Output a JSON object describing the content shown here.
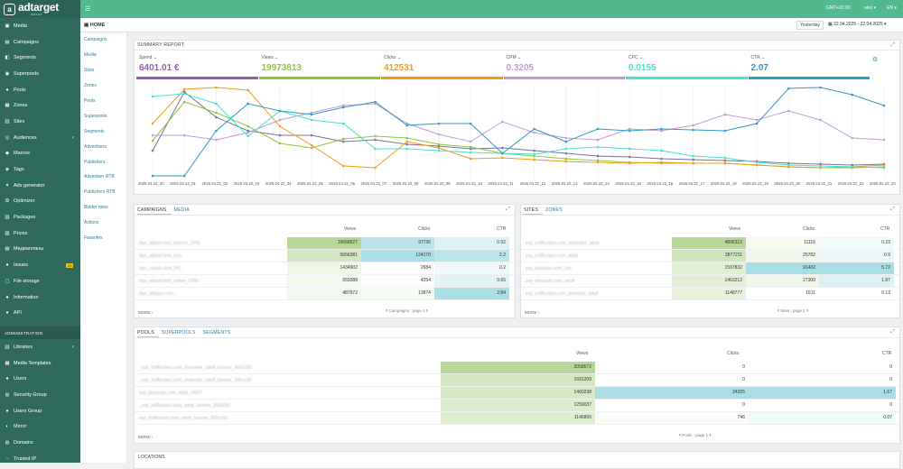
{
  "app": {
    "logo": "adtarget",
    "logo_sub": "SMART",
    "timezone": "GMT+03:00",
    "user": "alex",
    "lang": "EN"
  },
  "sidebar": {
    "items": [
      {
        "label": "Media",
        "icon": "image-icon"
      },
      {
        "label": "Campaigns",
        "icon": "briefcase-icon"
      },
      {
        "label": "Segments",
        "icon": "segments-icon"
      },
      {
        "label": "Superpools",
        "icon": "superpools-icon"
      },
      {
        "label": "Pools",
        "icon": "pools-icon"
      },
      {
        "label": "Zones",
        "icon": "zones-icon"
      },
      {
        "label": "Sites",
        "icon": "sites-icon"
      },
      {
        "label": "Audiences",
        "icon": "audiences-icon",
        "arrow": true
      },
      {
        "label": "Macros",
        "icon": "macros-icon"
      },
      {
        "label": "Tags",
        "icon": "tag-icon"
      },
      {
        "label": "Ads generator",
        "icon": "generator-icon"
      },
      {
        "label": "Optimizer",
        "icon": "gear-icon"
      },
      {
        "label": "Packages",
        "icon": "package-icon"
      },
      {
        "label": "Prices",
        "icon": "prices-icon"
      },
      {
        "label": "Медиапланы",
        "icon": "mediaplan-icon"
      },
      {
        "label": "Issues",
        "icon": "alert-icon",
        "badge": "20"
      },
      {
        "label": "File storage",
        "icon": "file-icon"
      },
      {
        "label": "Information",
        "icon": "info-icon"
      },
      {
        "label": "API",
        "icon": "api-icon"
      }
    ],
    "admin_title": "ADMINISTRATION",
    "admin_items": [
      {
        "label": "Libraries",
        "icon": "library-icon",
        "arrow": true
      },
      {
        "label": "Media Templates",
        "icon": "template-icon"
      },
      {
        "label": "Users",
        "icon": "user-icon"
      },
      {
        "label": "Security Group",
        "icon": "security-icon"
      },
      {
        "label": "Users Group",
        "icon": "users-group-icon"
      },
      {
        "label": "Mirror",
        "icon": "mirror-icon"
      },
      {
        "label": "Domains",
        "icon": "domain-icon"
      },
      {
        "label": "Trusted IP",
        "icon": "trusted-icon"
      }
    ]
  },
  "header": {
    "home": "HOME",
    "period": "Yesterday",
    "date_range": "22.04.2025 - 22.04.2025"
  },
  "subnav": [
    "Campaigns",
    "Media",
    "Sites",
    "Zones",
    "Pools",
    "Superpools",
    "Segments",
    "Advertisers",
    "Publishers",
    "Advertiser RTB",
    "Publishers RTB",
    "Bidder rules",
    "Actions",
    "Favorites"
  ],
  "summary": {
    "title": "SUMMARY REPORT",
    "metrics": [
      {
        "label": "Spend",
        "value": "6401.01 €",
        "color": "#9b59b6"
      },
      {
        "label": "Views",
        "value": "19973813",
        "color": "#8cc63f"
      },
      {
        "label": "Clicks",
        "value": "412531",
        "color": "#f39c12"
      },
      {
        "label": "CPM",
        "value": "0.3205",
        "color": "#c39bd3"
      },
      {
        "label": "CPC",
        "value": "0.0155",
        "color": "#48e0d0"
      },
      {
        "label": "CTR",
        "value": "2.07",
        "color": "#2e9bc6"
      }
    ]
  },
  "chart_data": {
    "type": "line",
    "x": [
      "2025.04.22_00",
      "2025.04.22_01",
      "2025.04.22_02",
      "2025.04.22_03",
      "2025.04.22_04",
      "2025.04.22_05",
      "2025.04.22_06",
      "2025.04.22_07",
      "2025.04.22_08",
      "2025.04.22_09",
      "2025.04.22_10",
      "2025.04.22_11",
      "2025.04.22_12",
      "2025.04.22_13",
      "2025.04.22_14",
      "2025.04.22_15",
      "2025.04.22_16",
      "2025.04.22_17",
      "2025.04.22_18",
      "2025.04.22_19",
      "2025.04.22_20",
      "2025.04.22_21",
      "2025.04.22_22",
      "2025.04.22_23"
    ],
    "ylim": [
      0,
      100
    ],
    "grid": true,
    "series": [
      {
        "name": "Spend",
        "color": "#7b6f9e",
        "values": [
          28,
          93,
          65,
          50,
          45,
          45,
          38,
          40,
          35,
          33,
          30,
          31,
          28,
          25,
          22,
          21,
          19,
          18,
          17,
          16,
          14,
          13,
          12,
          13
        ]
      },
      {
        "name": "Views",
        "color": "#8cc63f",
        "values": [
          39,
          82,
          70,
          55,
          36,
          31,
          41,
          44,
          42,
          35,
          32,
          25,
          22,
          19,
          17,
          15,
          14,
          14,
          14,
          12,
          10,
          9,
          9,
          10
        ]
      },
      {
        "name": "Clicks",
        "color": "#f39c12",
        "values": [
          58,
          96,
          98,
          95,
          55,
          34,
          11,
          9,
          38,
          31,
          19,
          20,
          18,
          16,
          15,
          14,
          15,
          14,
          14,
          12,
          10,
          9,
          10,
          12
        ]
      },
      {
        "name": "CPM",
        "color": "#c39bd3",
        "values": [
          45,
          45,
          40,
          48,
          62,
          70,
          78,
          80,
          58,
          46,
          38,
          60,
          48,
          42,
          40,
          52,
          50,
          56,
          68,
          62,
          72,
          62,
          42,
          40
        ]
      },
      {
        "name": "CPC",
        "color": "#48e0d0",
        "values": [
          88,
          91,
          80,
          44,
          72,
          62,
          58,
          30,
          30,
          28,
          26,
          25,
          24,
          30,
          32,
          30,
          28,
          22,
          20,
          15,
          12,
          11,
          10,
          9
        ]
      },
      {
        "name": "CTR",
        "color": "#2e9bc6",
        "values": [
          0,
          0,
          50,
          80,
          72,
          68,
          76,
          82,
          56,
          58,
          58,
          25,
          52,
          38,
          52,
          50,
          52,
          51,
          50,
          58,
          97,
          98,
          90,
          78
        ]
      }
    ]
  },
  "campaigns": {
    "tabs": [
      "CAMPAIGNS",
      "MEDIA"
    ],
    "headers": [
      "Views",
      "Clicks",
      "CTR"
    ],
    "rows": [
      {
        "name": "dsp_adpost.test_banner_CPM",
        "views": "10668927",
        "clicks": "97736",
        "ctr": "0.92",
        "vf": 1.0,
        "cf": 0.79,
        "tf": 0.32
      },
      {
        "name": "dsp_adpost.test_com",
        "views": "5656381",
        "clicks": "124170",
        "ctr": "2.2",
        "vf": 0.53,
        "cf": 1.0,
        "tf": 0.77
      },
      {
        "name": "dsp_ssosib.click_RO_",
        "views": "1434902",
        "clicks": "2684",
        "ctr": "0.2",
        "vf": 0.13,
        "cf": 0.02,
        "tf": 0.07
      },
      {
        "name": "dsp_adpost.test_native_CPM",
        "views": "659388",
        "clicks": "4254",
        "ctr": "0.65",
        "vf": 0.06,
        "cf": 0.03,
        "tf": 0.23
      },
      {
        "name": "dsp_alfapari.com_",
        "views": "487972",
        "clicks": "13874",
        "ctr": "2.84",
        "vf": 0.05,
        "cf": 0.11,
        "tf": 1.0
      }
    ],
    "more": "MORE",
    "pager": "Campaigns : page 1"
  },
  "sites": {
    "tabs": [
      "SITES",
      "ZONES"
    ],
    "headers": [
      "Views",
      "Clicks",
      "CTR"
    ],
    "rows": [
      {
        "name": "ssp_trafficstars.com_xhamster_adult",
        "views": "4896312",
        "clicks": "11116",
        "ctr": "0.23",
        "vf": 1.0,
        "cf": 0.12,
        "tf": 0.04
      },
      {
        "name": "ssp_trafficstars.com_adult",
        "views": "2877211",
        "clicks": "25782",
        "ctr": "0.9",
        "vf": 0.59,
        "cf": 0.28,
        "tf": 0.16
      },
      {
        "name": "ssp_dochase.com_mix",
        "views": "1597832",
        "clicks": "91402",
        "ctr": "5.72",
        "vf": 0.33,
        "cf": 1.0,
        "tf": 1.0
      },
      {
        "name": "ssp_daopush.com_adult",
        "views": "1463212",
        "clicks": "27300",
        "ctr": "1.87",
        "vf": 0.3,
        "cf": 0.3,
        "tf": 0.33
      },
      {
        "name": "ssp_trafficstars.com_premium_adult",
        "views": "1148777",
        "clicks": "1511",
        "ctr": "0.13",
        "vf": 0.23,
        "cf": 0.02,
        "tf": 0.02
      }
    ],
    "more": "MORE",
    "pager": "Sites : page 1"
  },
  "pools": {
    "tabs": [
      "POOLS",
      "SUPERPOOLS",
      "SEGMENTS"
    ],
    "headers": [
      "Views",
      "Clicks",
      "CTR"
    ],
    "rows": [
      {
        "name": "_ssp_trafficstars.com_xhamster_adult_banner_300x250",
        "views": "3058672",
        "clicks": "0",
        "ctr": "0",
        "vf": 1.0,
        "cf": 0,
        "tf": 0
      },
      {
        "name": "_ssp_trafficstars.com_xhamster_adult_banner_300x100",
        "views": "1691209",
        "clicks": "0",
        "ctr": "0",
        "vf": 0.55,
        "cf": 0,
        "tf": 0
      },
      {
        "name": "ssp_daopush.com_adult_VAST",
        "views": "1460238",
        "clicks": "24325",
        "ctr": "1.67",
        "vf": 0.48,
        "cf": 1.0,
        "tf": 1.0
      },
      {
        "name": "_ssp_trafficstars.com_adult_banner_300x250",
        "views": "1259037",
        "clicks": "0",
        "ctr": "0",
        "vf": 0.41,
        "cf": 0,
        "tf": 0
      },
      {
        "name": "ssp_trafficstars.com_adult_banner_300x250",
        "views": "1146865",
        "clicks": "746",
        "ctr": "0.07",
        "vf": 0.37,
        "cf": 0.03,
        "tf": 0.04
      }
    ],
    "more": "MORE",
    "pager": "Pools : page 1"
  },
  "locations": {
    "title": "LOCATIONS"
  }
}
